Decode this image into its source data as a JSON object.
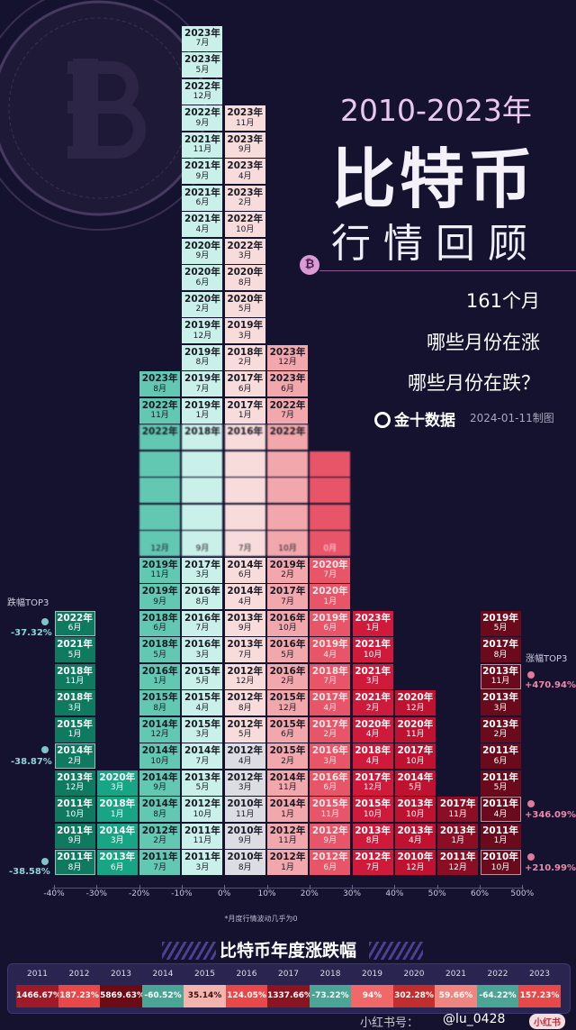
{
  "title": {
    "years": "2010-2023年",
    "main": "比特币",
    "sub": "行情回顾",
    "btc_symbol": "₿",
    "lines": [
      "161个月",
      "哪些月份在涨",
      "哪些月份在跌？"
    ],
    "source": "金十数据",
    "date": "2024-01-11制图"
  },
  "chart_data": {
    "type": "stacked-month-histogram",
    "xlabel": "",
    "ylabel": "",
    "x_ticks": [
      "-40%",
      "-30%",
      "-20%",
      "-10%",
      "0%",
      "10%",
      "20%",
      "30%",
      "40%",
      "50%",
      "60%",
      "500%"
    ],
    "bins": [
      {
        "range": "-40%~-30%",
        "color": "#0f7a60",
        "months": [
          [
            "2011年",
            "8月"
          ],
          [
            "2011年",
            "9月"
          ],
          [
            "2011年",
            "10月"
          ],
          [
            "2013年",
            "12月"
          ],
          [
            "2014年",
            "2月"
          ],
          [
            "2015年",
            "1月"
          ],
          [
            "2018年",
            "3月"
          ],
          [
            "2018年",
            "11月"
          ],
          [
            "2021年",
            "5月"
          ],
          [
            "2022年",
            "6月"
          ]
        ]
      },
      {
        "range": "-30%~-20%",
        "color": "#17a585",
        "months": [
          [
            "2013年",
            "6月"
          ],
          [
            "2014年",
            "3月"
          ],
          [
            "2018年",
            "1月"
          ],
          [
            "2020年",
            "3月"
          ]
        ]
      },
      {
        "range": "-20%~-10%",
        "color": "#62c8b2",
        "months": [
          [
            "2011年",
            "7月"
          ],
          [
            "2012年",
            "2月"
          ],
          [
            "2014年",
            "8月"
          ],
          [
            "2014年",
            "9月"
          ],
          [
            "2014年",
            "10月"
          ],
          [
            "2014年",
            "12月"
          ],
          [
            "2015年",
            "8月"
          ],
          [
            "2016年",
            "1月"
          ],
          [
            "2018年",
            "5月"
          ],
          [
            "2018年",
            "6月"
          ],
          [
            "2019年",
            "9月"
          ],
          [
            "2019年",
            "11月"
          ],
          [
            "",
            "12月"
          ],
          [
            "",
            ""
          ],
          [
            "",
            ""
          ],
          [
            "",
            ""
          ],
          [
            "2022年",
            ""
          ],
          [
            "2022年",
            "11月"
          ],
          [
            "2023年",
            "8月"
          ]
        ]
      },
      {
        "range": "-10%~0%",
        "color": "#c9f1ea",
        "months": [
          [
            "2011年",
            "3月"
          ],
          [
            "2011年",
            "11月"
          ],
          [
            "2012年",
            "10月"
          ],
          [
            "2013年",
            "5月"
          ],
          [
            "2014年",
            "7月"
          ],
          [
            "2015年",
            "3月"
          ],
          [
            "2015年",
            "4月"
          ],
          [
            "2015年",
            "5月"
          ],
          [
            "2016年",
            "3月"
          ],
          [
            "2016年",
            "7月"
          ],
          [
            "2016年",
            "8月"
          ],
          [
            "2017年",
            "3月"
          ],
          [
            "",
            "9月"
          ],
          [
            "",
            ""
          ],
          [
            "",
            ""
          ],
          [
            "",
            ""
          ],
          [
            "2018年",
            ""
          ],
          [
            "2019年",
            "1月"
          ],
          [
            "2019年",
            "7月"
          ],
          [
            "2019年",
            "8月"
          ],
          [
            "2019年",
            "12月"
          ],
          [
            "2020年",
            "2月"
          ],
          [
            "2020年",
            "6月"
          ],
          [
            "2020年",
            "9月"
          ],
          [
            "2021年",
            "4月"
          ],
          [
            "2021年",
            "6月"
          ],
          [
            "2021年",
            "9月"
          ],
          [
            "2021年",
            "11月"
          ],
          [
            "2022年",
            "9月"
          ],
          [
            "2022年",
            "12月"
          ],
          [
            "2023年",
            "5月"
          ],
          [
            "2023年",
            "7月"
          ]
        ]
      },
      {
        "range": "0%~10%",
        "color": "#f8dcdb",
        "months": [
          [
            "2010年",
            "8月"
          ],
          [
            "2010年",
            "9月"
          ],
          [
            "2010年",
            "11月"
          ],
          [
            "2012年",
            "3月"
          ],
          [
            "2012年",
            "4月"
          ],
          [
            "2012年",
            "5月"
          ],
          [
            "2012年",
            "8月"
          ],
          [
            "2012年",
            "12月"
          ],
          [
            "2013年",
            "7月"
          ],
          [
            "2013年",
            "9月"
          ],
          [
            "2014年",
            "4月"
          ],
          [
            "2014年",
            "6月"
          ],
          [
            "",
            "7月"
          ],
          [
            "",
            ""
          ],
          [
            "",
            ""
          ],
          [
            "",
            ""
          ],
          [
            "2016年",
            ""
          ],
          [
            "2017年",
            "1月"
          ],
          [
            "2017年",
            "6月"
          ],
          [
            "2018年",
            "2月"
          ],
          [
            "2019年",
            "3月"
          ],
          [
            "2020年",
            "5月"
          ],
          [
            "2020年",
            "8月"
          ],
          [
            "2022年",
            "3月"
          ],
          [
            "2022年",
            "10月"
          ],
          [
            "2023年",
            "2月"
          ],
          [
            "2023年",
            "4月"
          ],
          [
            "2023年",
            "9月"
          ],
          [
            "2023年",
            "11月"
          ]
        ]
      },
      {
        "range": "10%~20%",
        "color": "#f1a7ab",
        "months": [
          [
            "2012年",
            "1月"
          ],
          [
            "2012年",
            "11月"
          ],
          [
            "2014年",
            "1月"
          ],
          [
            "2014年",
            "11月"
          ],
          [
            "2015年",
            "2月"
          ],
          [
            "2015年",
            "6月"
          ],
          [
            "2015年",
            "12月"
          ],
          [
            "2016年",
            "2月"
          ],
          [
            "2016年",
            "5月"
          ],
          [
            "2016年",
            "10月"
          ],
          [
            "2017年",
            "7月"
          ],
          [
            "2019年",
            "2月"
          ],
          [
            "",
            "10月"
          ],
          [
            "",
            ""
          ],
          [
            "",
            ""
          ],
          [
            "",
            ""
          ],
          [
            "2022年",
            ""
          ],
          [
            "2022年",
            "7月"
          ],
          [
            "2023年",
            "6月"
          ],
          [
            "2023年",
            "12月"
          ]
        ]
      },
      {
        "range": "20%~30%",
        "color": "#e85568",
        "months": [
          [
            "2012年",
            "6月"
          ],
          [
            "2012年",
            "9月"
          ],
          [
            "2015年",
            "11月"
          ],
          [
            "2016年",
            "6月"
          ],
          [
            "2016年",
            "3月"
          ],
          [
            "2017年",
            "2月"
          ],
          [
            "2017年",
            "4月"
          ],
          [
            "2018年",
            "7月"
          ],
          [
            "2019年",
            "4月"
          ],
          [
            "2019年",
            "6月"
          ],
          [
            "2020年",
            "1月"
          ],
          [
            "2020年",
            "7月"
          ],
          [
            "",
            "0月"
          ],
          [
            "",
            ""
          ],
          [
            "",
            ""
          ],
          [
            "",
            ""
          ]
        ]
      },
      {
        "range": "30%~40%",
        "color": "#d01a3c",
        "months": [
          [
            "2012年",
            "7月"
          ],
          [
            "2013年",
            "8月"
          ],
          [
            "2015年",
            "10月"
          ],
          [
            "2017年",
            "12月"
          ],
          [
            "2018年",
            "4月"
          ],
          [
            "2020年",
            "4月"
          ],
          [
            "2021年",
            "2月"
          ],
          [
            "2021年",
            "3月"
          ],
          [
            "2021年",
            "10月"
          ],
          [
            "2023年",
            "1月"
          ]
        ]
      },
      {
        "range": "40%~50%",
        "color": "#be1230",
        "months": [
          [
            "2010年",
            "12月"
          ],
          [
            "2013年",
            "4月"
          ],
          [
            "2013年",
            "10月"
          ],
          [
            "2014年",
            "5月"
          ],
          [
            "2017年",
            "10月"
          ],
          [
            "2020年",
            "11月"
          ],
          [
            "2020年",
            "12月"
          ]
        ]
      },
      {
        "range": "50%~60%",
        "color": "#8c0e24",
        "months": [
          [
            "2011年",
            "12月"
          ],
          [
            "2013年",
            "1月"
          ],
          [
            "2017年",
            "11月"
          ]
        ]
      },
      {
        "range": "60%~500%",
        "color": "#6a0a1c",
        "months": [
          [
            "2010年",
            "10月"
          ],
          [
            "2011年",
            "1月"
          ],
          [
            "2011年",
            "4月"
          ],
          [
            "2011年",
            "5月"
          ],
          [
            "2011年",
            "6月"
          ],
          [
            "2013年",
            "2月"
          ],
          [
            "2013年",
            "3月"
          ],
          [
            "2013年",
            "11月"
          ],
          [
            "2017年",
            "8月"
          ],
          [
            "2019年",
            "5月"
          ]
        ]
      }
    ],
    "near_zero_months": [
      [
        "2010年",
        "8月"
      ],
      [
        "2010年",
        "9月"
      ],
      [
        "2010年",
        "11月"
      ],
      [
        "2012年",
        "3月"
      ],
      [
        "2012年",
        "4月"
      ]
    ],
    "near_zero_color": "#dcdde3",
    "top3_drop": {
      "label": "跌幅TOP3",
      "items": [
        {
          "month": "2022年6月",
          "value": "-37.32%"
        },
        {
          "month": "2014年2月",
          "value": "-38.87%"
        },
        {
          "month": "2011年8月",
          "value": "-38.58%"
        }
      ]
    },
    "top3_rise": {
      "label": "涨幅TOP3",
      "items": [
        {
          "month": "2013年11月",
          "value": "+470.94%"
        },
        {
          "month": "2011年4月",
          "value": "+346.09%"
        },
        {
          "month": "2010年10月",
          "value": "+210.99%"
        }
      ]
    },
    "footnote": "*月度行情波动几乎为0"
  },
  "annual": {
    "title": "比特币年度涨跌幅",
    "years": [
      "2011",
      "2012",
      "2013",
      "2014",
      "2015",
      "2016",
      "2017",
      "2018",
      "2019",
      "2020",
      "2021",
      "2022",
      "2023"
    ],
    "values": [
      "1466.67%",
      "187.23%",
      "5869.63%",
      "-60.52%",
      "35.14%",
      "124.05%",
      "1337.66%",
      "-73.22%",
      "94%",
      "302.28%",
      "59.66%",
      "-64.22%",
      "157.23%"
    ],
    "colors": [
      "#9e1a28",
      "#e84848",
      "#6c0a16",
      "#4aa594",
      "#f3b4ae",
      "#e84848",
      "#8a1422",
      "#4aa594",
      "#f06868",
      "#c22e2e",
      "#f0857f",
      "#4aa594",
      "#e84848"
    ]
  },
  "watermark": {
    "badge": "小红书",
    "prefix": "小红书号：",
    "handle": "@lu_0428"
  }
}
